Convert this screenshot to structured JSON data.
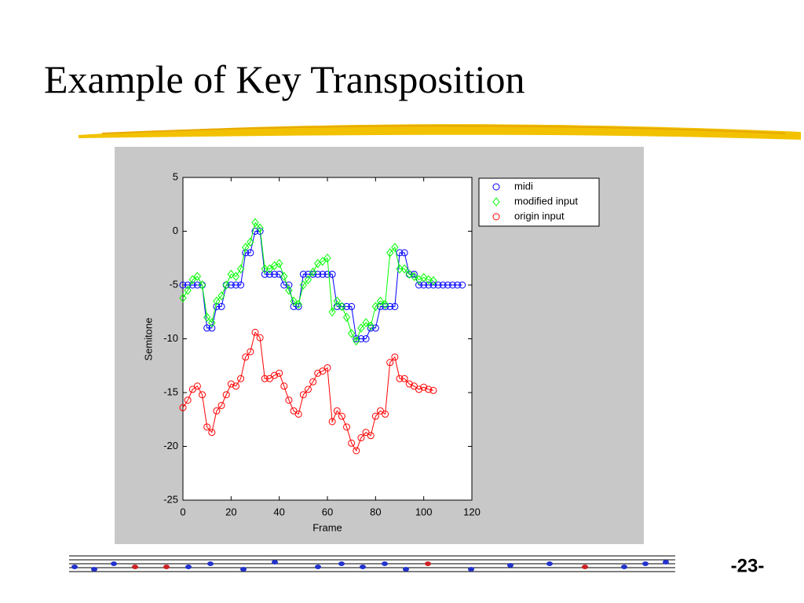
{
  "slide": {
    "title": "Example of Key Transposition",
    "page_number": "-23-"
  },
  "chart_data": {
    "type": "line",
    "xlabel": "Frame",
    "ylabel": "Semitone",
    "xlim": [
      0,
      120
    ],
    "xticks": [
      0,
      20,
      40,
      60,
      80,
      100,
      120
    ],
    "ylim": [
      -25,
      5
    ],
    "yticks": [
      -25,
      -20,
      -15,
      -10,
      -5,
      0,
      5
    ],
    "legend": "right",
    "series": [
      {
        "name": "midi",
        "color": "#0000ff",
        "marker": "circle",
        "x": [
          0,
          2,
          4,
          6,
          8,
          10,
          12,
          14,
          16,
          18,
          20,
          22,
          24,
          26,
          28,
          30,
          32,
          34,
          36,
          38,
          40,
          42,
          44,
          46,
          48,
          50,
          52,
          54,
          56,
          58,
          60,
          62,
          64,
          66,
          68,
          70,
          72,
          74,
          76,
          78,
          80,
          82,
          84,
          86,
          88,
          90,
          92,
          94,
          96,
          98,
          100,
          102,
          104,
          106,
          108,
          110,
          112,
          114,
          116
        ],
        "values": [
          -5,
          -5,
          -5,
          -5,
          -5,
          -9,
          -9,
          -7,
          -7,
          -5,
          -5,
          -5,
          -5,
          -2,
          -2,
          0,
          0,
          -4,
          -4,
          -4,
          -4,
          -5,
          -5,
          -7,
          -7,
          -4,
          -4,
          -4,
          -4,
          -4,
          -4,
          -4,
          -7,
          -7,
          -7,
          -7,
          -10,
          -10,
          -10,
          -9,
          -9,
          -7,
          -7,
          -7,
          -7,
          -2,
          -2,
          -4,
          -4,
          -5,
          -5,
          -5,
          -5,
          -5,
          -5,
          -5,
          -5,
          -5,
          -5
        ]
      },
      {
        "name": "modified input",
        "color": "#00ff00",
        "marker": "diamond",
        "x": [
          0,
          2,
          4,
          6,
          8,
          10,
          12,
          14,
          16,
          18,
          20,
          22,
          24,
          26,
          28,
          30,
          32,
          34,
          36,
          38,
          40,
          42,
          44,
          46,
          48,
          50,
          52,
          54,
          56,
          58,
          60,
          62,
          64,
          66,
          68,
          70,
          72,
          74,
          76,
          78,
          80,
          82,
          84,
          86,
          88,
          90,
          92,
          94,
          96,
          98,
          100,
          102,
          104
        ],
        "values": [
          -6.2,
          -5.5,
          -4.5,
          -4.2,
          -5,
          -8,
          -8.5,
          -6.5,
          -6,
          -5,
          -4,
          -4.2,
          -3.5,
          -1.5,
          -1,
          0.8,
          0.3,
          -3.5,
          -3.5,
          -3.2,
          -3,
          -4.2,
          -5.5,
          -6.5,
          -6.8,
          -5,
          -4.5,
          -3.8,
          -3,
          -2.8,
          -2.5,
          -7.5,
          -6.5,
          -7,
          -8,
          -9.5,
          -10.2,
          -9,
          -8.5,
          -8.8,
          -7,
          -6.5,
          -6.8,
          -2,
          -1.5,
          -3.5,
          -3.5,
          -4,
          -4.2,
          -4.5,
          -4.3,
          -4.5,
          -4.6
        ]
      },
      {
        "name": "origin input",
        "color": "#ff0000",
        "marker": "circle",
        "x": [
          0,
          2,
          4,
          6,
          8,
          10,
          12,
          14,
          16,
          18,
          20,
          22,
          24,
          26,
          28,
          30,
          32,
          34,
          36,
          38,
          40,
          42,
          44,
          46,
          48,
          50,
          52,
          54,
          56,
          58,
          60,
          62,
          64,
          66,
          68,
          70,
          72,
          74,
          76,
          78,
          80,
          82,
          84,
          86,
          88,
          90,
          92,
          94,
          96,
          98,
          100,
          102,
          104
        ],
        "values": [
          -16.4,
          -15.7,
          -14.7,
          -14.4,
          -15.2,
          -18.2,
          -18.7,
          -16.7,
          -16.2,
          -15.2,
          -14.2,
          -14.4,
          -13.7,
          -11.7,
          -11.2,
          -9.4,
          -9.9,
          -13.7,
          -13.7,
          -13.4,
          -13.2,
          -14.4,
          -15.7,
          -16.7,
          -17,
          -15.2,
          -14.7,
          -14,
          -13.2,
          -13,
          -12.7,
          -17.7,
          -16.7,
          -17.2,
          -18.2,
          -19.7,
          -20.4,
          -19.2,
          -18.7,
          -19,
          -17.2,
          -16.7,
          -17,
          -12.2,
          -11.7,
          -13.7,
          -13.7,
          -14.2,
          -14.4,
          -14.7,
          -14.5,
          -14.7,
          -14.8
        ]
      }
    ]
  }
}
